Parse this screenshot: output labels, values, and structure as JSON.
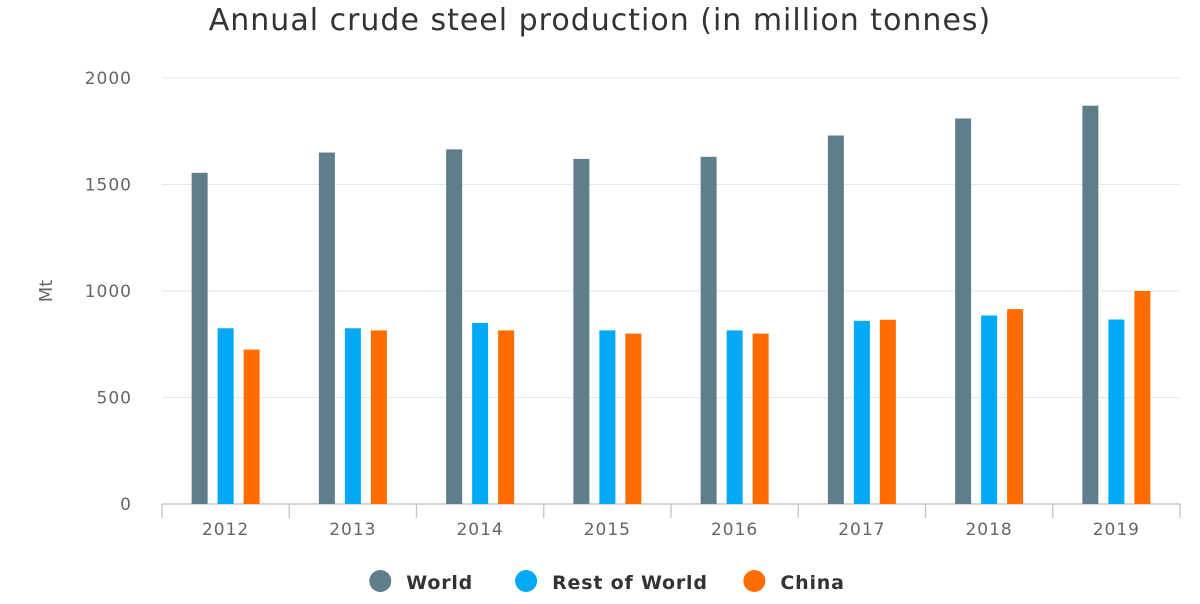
{
  "chart_data": {
    "type": "bar",
    "title": "Annual crude steel production (in million tonnes)",
    "xlabel": "",
    "ylabel": "Mt",
    "ylim": [
      0,
      2000
    ],
    "yticks": [
      0,
      500,
      1000,
      1500,
      2000
    ],
    "grid": true,
    "legend_position": "bottom",
    "categories": [
      "2012",
      "2013",
      "2014",
      "2015",
      "2016",
      "2017",
      "2018",
      "2019"
    ],
    "series": [
      {
        "name": "World",
        "color": "#607d8b",
        "values": [
          1555,
          1650,
          1665,
          1620,
          1630,
          1730,
          1810,
          1870
        ]
      },
      {
        "name": "Rest of World",
        "color": "#03a9f4",
        "values": [
          825,
          825,
          850,
          815,
          815,
          860,
          885,
          866
        ]
      },
      {
        "name": "China",
        "color": "#ff6d00",
        "values": [
          725,
          815,
          815,
          800,
          800,
          865,
          915,
          1000
        ]
      }
    ]
  }
}
